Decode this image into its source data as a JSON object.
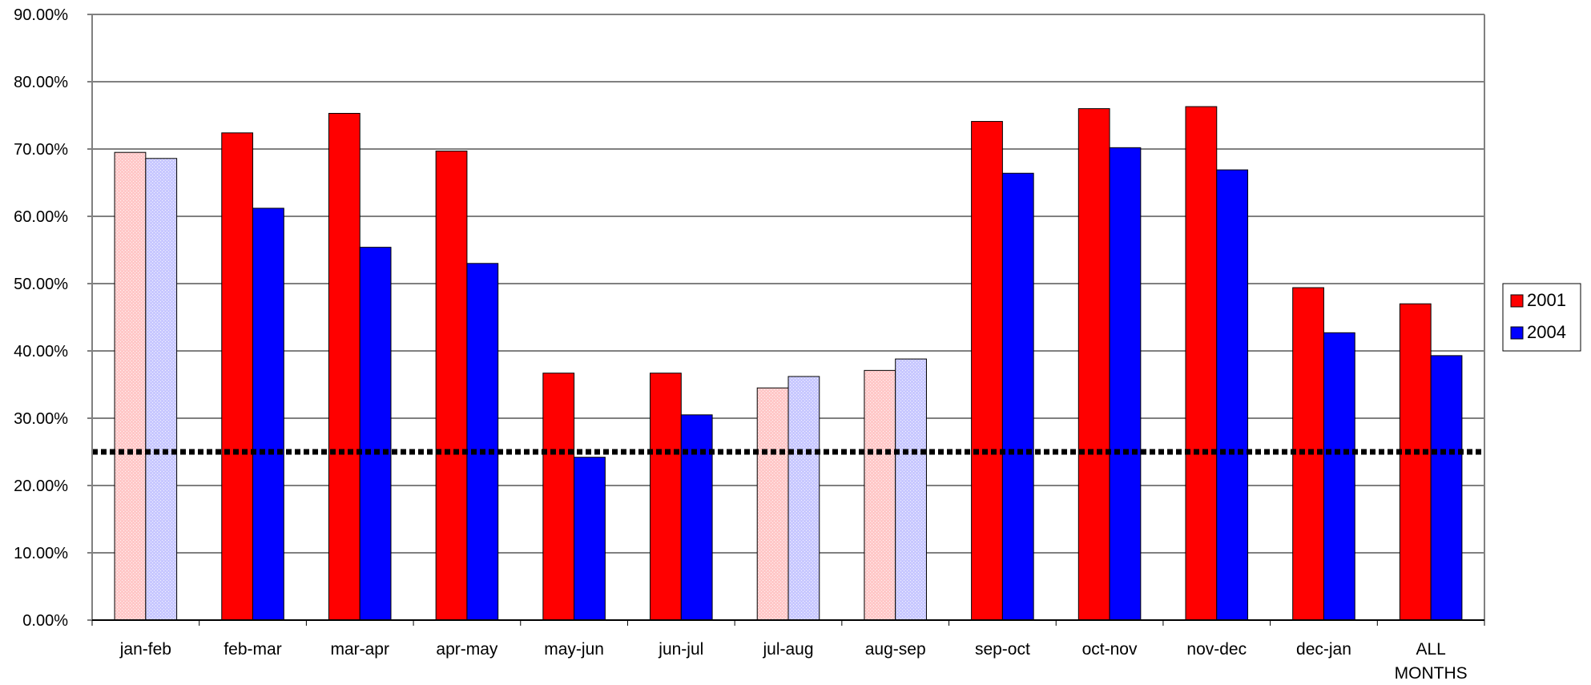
{
  "chart_data": {
    "type": "bar",
    "title": "",
    "xlabel": "",
    "ylabel": "",
    "ylim": [
      0,
      0.9
    ],
    "y_ticks": [
      "0.00%",
      "10.00%",
      "20.00%",
      "30.00%",
      "40.00%",
      "50.00%",
      "60.00%",
      "70.00%",
      "80.00%",
      "90.00%"
    ],
    "grid": "horizontal",
    "legend_position": "right",
    "categories": [
      "jan-feb",
      "feb-mar",
      "mar-apr",
      "apr-may",
      "may-jun",
      "jun-jul",
      "jul-aug",
      "aug-sep",
      "sep-oct",
      "oct-nov",
      "nov-dec",
      "dec-jan",
      "ALL MONTHS"
    ],
    "highlighted_categories_pale": [
      "jan-feb",
      "jul-aug",
      "aug-sep"
    ],
    "series": [
      {
        "name": "2001",
        "color": "#ff0000",
        "pale_color": "#ffc8c8",
        "values": [
          0.695,
          0.724,
          0.753,
          0.697,
          0.367,
          0.367,
          0.345,
          0.371,
          0.741,
          0.76,
          0.763,
          0.494,
          0.47
        ]
      },
      {
        "name": "2004",
        "color": "#0000ff",
        "pale_color": "#c8c8ff",
        "values": [
          0.686,
          0.612,
          0.554,
          0.53,
          0.242,
          0.305,
          0.362,
          0.388,
          0.664,
          0.702,
          0.669,
          0.427,
          0.393
        ]
      }
    ],
    "reference_line": {
      "value": 0.25,
      "style": "dotted",
      "color": "#000000"
    }
  }
}
